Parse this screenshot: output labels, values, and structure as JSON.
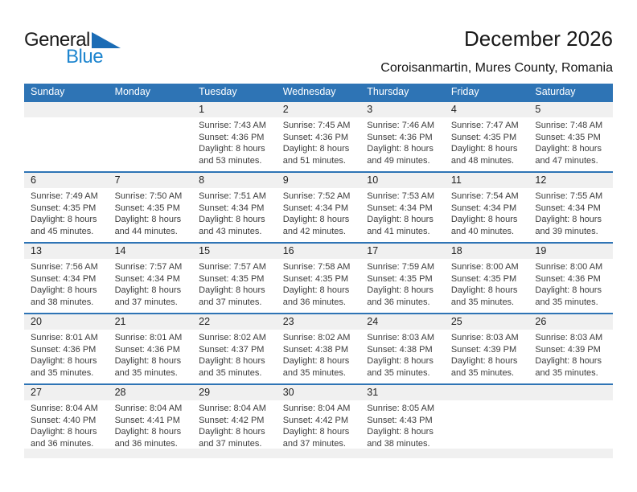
{
  "logo": {
    "part1": "General",
    "part2": "Blue"
  },
  "header": {
    "title": "December 2026",
    "subtitle": "Coroisanmartin, Mures County, Romania"
  },
  "colors": {
    "accent": "#2e74b5",
    "strip": "#f0f0f0",
    "logo-blue": "#1f86cf",
    "logo-triangle": "#1b6cb5"
  },
  "calendar": {
    "day_headers": [
      "Sunday",
      "Monday",
      "Tuesday",
      "Wednesday",
      "Thursday",
      "Friday",
      "Saturday"
    ],
    "weeks": [
      [
        null,
        null,
        {
          "day": "1",
          "lines": [
            "Sunrise: 7:43 AM",
            "Sunset: 4:36 PM",
            "Daylight: 8 hours",
            "and 53 minutes."
          ]
        },
        {
          "day": "2",
          "lines": [
            "Sunrise: 7:45 AM",
            "Sunset: 4:36 PM",
            "Daylight: 8 hours",
            "and 51 minutes."
          ]
        },
        {
          "day": "3",
          "lines": [
            "Sunrise: 7:46 AM",
            "Sunset: 4:36 PM",
            "Daylight: 8 hours",
            "and 49 minutes."
          ]
        },
        {
          "day": "4",
          "lines": [
            "Sunrise: 7:47 AM",
            "Sunset: 4:35 PM",
            "Daylight: 8 hours",
            "and 48 minutes."
          ]
        },
        {
          "day": "5",
          "lines": [
            "Sunrise: 7:48 AM",
            "Sunset: 4:35 PM",
            "Daylight: 8 hours",
            "and 47 minutes."
          ]
        }
      ],
      [
        {
          "day": "6",
          "lines": [
            "Sunrise: 7:49 AM",
            "Sunset: 4:35 PM",
            "Daylight: 8 hours",
            "and 45 minutes."
          ]
        },
        {
          "day": "7",
          "lines": [
            "Sunrise: 7:50 AM",
            "Sunset: 4:35 PM",
            "Daylight: 8 hours",
            "and 44 minutes."
          ]
        },
        {
          "day": "8",
          "lines": [
            "Sunrise: 7:51 AM",
            "Sunset: 4:34 PM",
            "Daylight: 8 hours",
            "and 43 minutes."
          ]
        },
        {
          "day": "9",
          "lines": [
            "Sunrise: 7:52 AM",
            "Sunset: 4:34 PM",
            "Daylight: 8 hours",
            "and 42 minutes."
          ]
        },
        {
          "day": "10",
          "lines": [
            "Sunrise: 7:53 AM",
            "Sunset: 4:34 PM",
            "Daylight: 8 hours",
            "and 41 minutes."
          ]
        },
        {
          "day": "11",
          "lines": [
            "Sunrise: 7:54 AM",
            "Sunset: 4:34 PM",
            "Daylight: 8 hours",
            "and 40 minutes."
          ]
        },
        {
          "day": "12",
          "lines": [
            "Sunrise: 7:55 AM",
            "Sunset: 4:34 PM",
            "Daylight: 8 hours",
            "and 39 minutes."
          ]
        }
      ],
      [
        {
          "day": "13",
          "lines": [
            "Sunrise: 7:56 AM",
            "Sunset: 4:34 PM",
            "Daylight: 8 hours",
            "and 38 minutes."
          ]
        },
        {
          "day": "14",
          "lines": [
            "Sunrise: 7:57 AM",
            "Sunset: 4:34 PM",
            "Daylight: 8 hours",
            "and 37 minutes."
          ]
        },
        {
          "day": "15",
          "lines": [
            "Sunrise: 7:57 AM",
            "Sunset: 4:35 PM",
            "Daylight: 8 hours",
            "and 37 minutes."
          ]
        },
        {
          "day": "16",
          "lines": [
            "Sunrise: 7:58 AM",
            "Sunset: 4:35 PM",
            "Daylight: 8 hours",
            "and 36 minutes."
          ]
        },
        {
          "day": "17",
          "lines": [
            "Sunrise: 7:59 AM",
            "Sunset: 4:35 PM",
            "Daylight: 8 hours",
            "and 36 minutes."
          ]
        },
        {
          "day": "18",
          "lines": [
            "Sunrise: 8:00 AM",
            "Sunset: 4:35 PM",
            "Daylight: 8 hours",
            "and 35 minutes."
          ]
        },
        {
          "day": "19",
          "lines": [
            "Sunrise: 8:00 AM",
            "Sunset: 4:36 PM",
            "Daylight: 8 hours",
            "and 35 minutes."
          ]
        }
      ],
      [
        {
          "day": "20",
          "lines": [
            "Sunrise: 8:01 AM",
            "Sunset: 4:36 PM",
            "Daylight: 8 hours",
            "and 35 minutes."
          ]
        },
        {
          "day": "21",
          "lines": [
            "Sunrise: 8:01 AM",
            "Sunset: 4:36 PM",
            "Daylight: 8 hours",
            "and 35 minutes."
          ]
        },
        {
          "day": "22",
          "lines": [
            "Sunrise: 8:02 AM",
            "Sunset: 4:37 PM",
            "Daylight: 8 hours",
            "and 35 minutes."
          ]
        },
        {
          "day": "23",
          "lines": [
            "Sunrise: 8:02 AM",
            "Sunset: 4:38 PM",
            "Daylight: 8 hours",
            "and 35 minutes."
          ]
        },
        {
          "day": "24",
          "lines": [
            "Sunrise: 8:03 AM",
            "Sunset: 4:38 PM",
            "Daylight: 8 hours",
            "and 35 minutes."
          ]
        },
        {
          "day": "25",
          "lines": [
            "Sunrise: 8:03 AM",
            "Sunset: 4:39 PM",
            "Daylight: 8 hours",
            "and 35 minutes."
          ]
        },
        {
          "day": "26",
          "lines": [
            "Sunrise: 8:03 AM",
            "Sunset: 4:39 PM",
            "Daylight: 8 hours",
            "and 35 minutes."
          ]
        }
      ],
      [
        {
          "day": "27",
          "lines": [
            "Sunrise: 8:04 AM",
            "Sunset: 4:40 PM",
            "Daylight: 8 hours",
            "and 36 minutes."
          ]
        },
        {
          "day": "28",
          "lines": [
            "Sunrise: 8:04 AM",
            "Sunset: 4:41 PM",
            "Daylight: 8 hours",
            "and 36 minutes."
          ]
        },
        {
          "day": "29",
          "lines": [
            "Sunrise: 8:04 AM",
            "Sunset: 4:42 PM",
            "Daylight: 8 hours",
            "and 37 minutes."
          ]
        },
        {
          "day": "30",
          "lines": [
            "Sunrise: 8:04 AM",
            "Sunset: 4:42 PM",
            "Daylight: 8 hours",
            "and 37 minutes."
          ]
        },
        {
          "day": "31",
          "lines": [
            "Sunrise: 8:05 AM",
            "Sunset: 4:43 PM",
            "Daylight: 8 hours",
            "and 38 minutes."
          ]
        },
        null,
        null
      ]
    ]
  }
}
